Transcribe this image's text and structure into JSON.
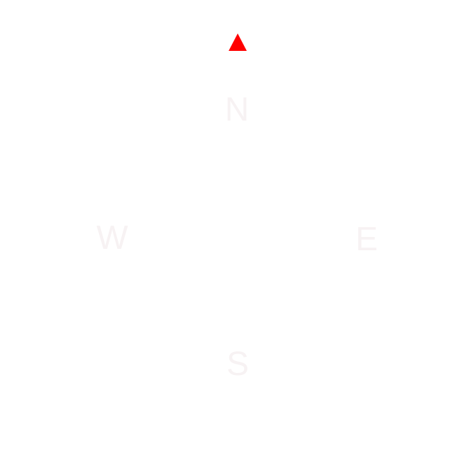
{
  "compass": {
    "heading_marker": {
      "icon": "triangle-up-icon",
      "color": "#ff0000"
    },
    "directions": {
      "north": "N",
      "west": "W",
      "east": "E",
      "south": "S"
    },
    "label_color": "#f7f2f3"
  }
}
